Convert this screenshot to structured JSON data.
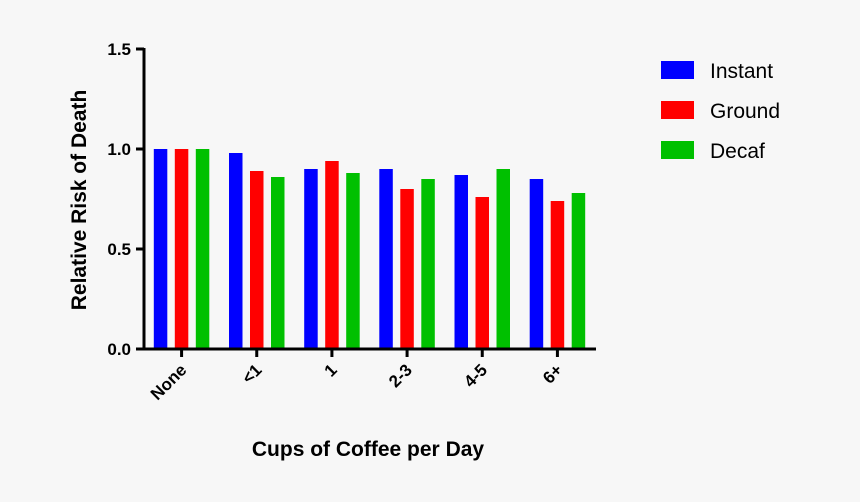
{
  "chart_data": {
    "type": "bar",
    "categories": [
      "None",
      "<1",
      "1",
      "2-3",
      "4-5",
      "6+"
    ],
    "series": [
      {
        "name": "Instant",
        "color": "#0000ff",
        "values": [
          1.0,
          0.98,
          0.9,
          0.9,
          0.87,
          0.85
        ]
      },
      {
        "name": "Ground",
        "color": "#ff0000",
        "values": [
          1.0,
          0.89,
          0.94,
          0.8,
          0.76,
          0.74
        ]
      },
      {
        "name": "Decaf",
        "color": "#00c000",
        "values": [
          1.0,
          0.86,
          0.88,
          0.85,
          0.9,
          0.78
        ]
      }
    ],
    "xlabel": "Cups of Coffee per Day",
    "ylabel": "Relative Risk of  Death",
    "ylim": [
      0,
      1.5
    ],
    "yticks": [
      "0.0",
      "0.5",
      "1.0",
      "1.5"
    ],
    "grid": false,
    "legend": "right"
  }
}
